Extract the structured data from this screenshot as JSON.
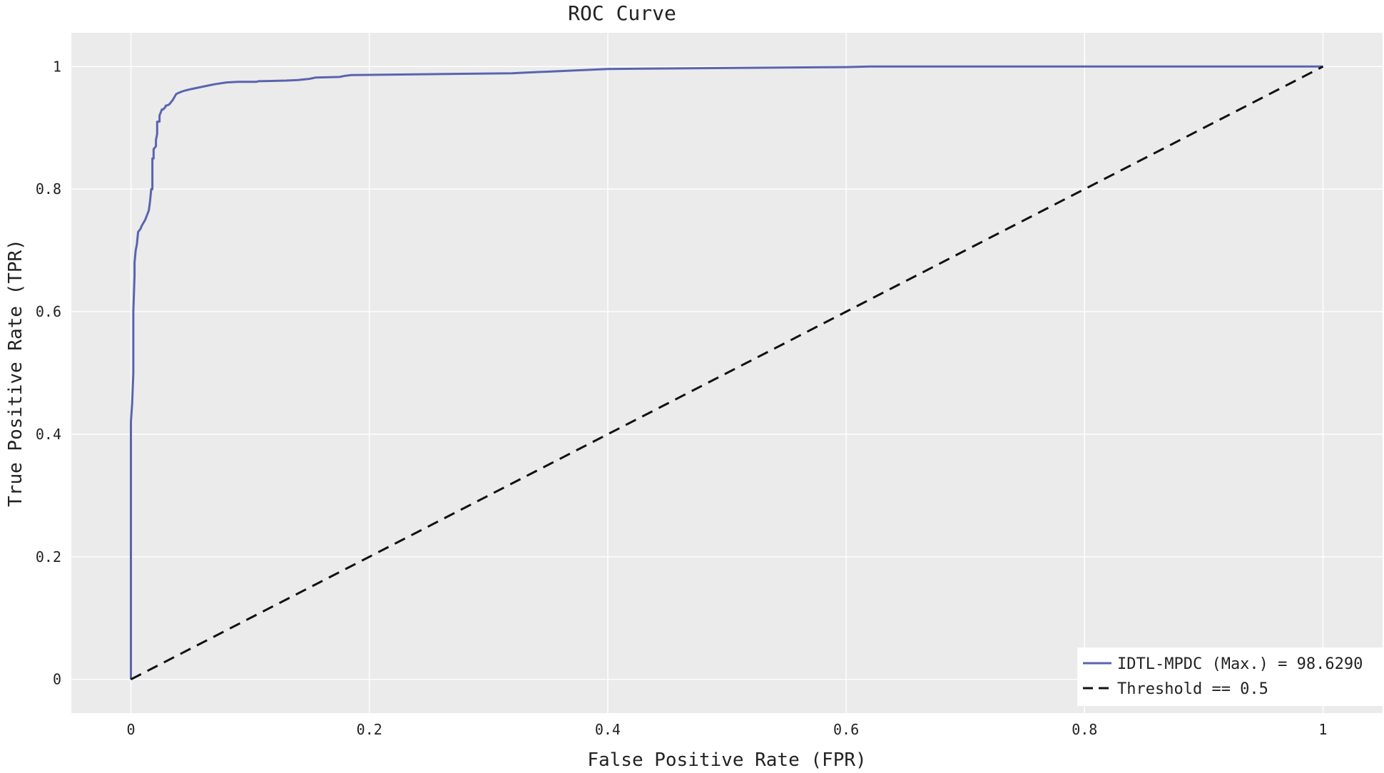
{
  "chart_data": {
    "type": "line",
    "title": "ROC Curve",
    "xlabel": "False Positive Rate (FPR)",
    "ylabel": "True Positive Rate (TPR)",
    "xlim": [
      -0.05,
      1.05
    ],
    "ylim": [
      -0.055,
      1.055
    ],
    "x_ticks": [
      0,
      0.2,
      0.4,
      0.6,
      0.8,
      1
    ],
    "x_tick_labels": [
      "0",
      "0.2",
      "0.4",
      "0.6",
      "0.8",
      "1"
    ],
    "y_ticks": [
      0,
      0.2,
      0.4,
      0.6,
      0.8,
      1
    ],
    "y_tick_labels": [
      "0",
      "0.2",
      "0.4",
      "0.6",
      "0.8",
      "1"
    ],
    "grid": true,
    "background_color": "#ebebeb",
    "legend_position": "bottom-right",
    "series": [
      {
        "name": "IDTL-MPDC (Max.) = 98.6290",
        "color": "#5b63b0",
        "style": "solid",
        "x": [
          0,
          0,
          0.001,
          0.002,
          0.002,
          0.003,
          0.003,
          0.004,
          0.005,
          0.006,
          0.008,
          0.009,
          0.012,
          0.014,
          0.015,
          0.016,
          0.017,
          0.018,
          0.018,
          0.019,
          0.019,
          0.021,
          0.021,
          0.022,
          0.022,
          0.024,
          0.024,
          0.026,
          0.027,
          0.029,
          0.029,
          0.031,
          0.032,
          0.035,
          0.037,
          0.038,
          0.04,
          0.044,
          0.05,
          0.055,
          0.065,
          0.07,
          0.08,
          0.09,
          0.105,
          0.107,
          0.13,
          0.14,
          0.15,
          0.155,
          0.175,
          0.18,
          0.185,
          0.32,
          0.33,
          0.4,
          0.6,
          0.62,
          1.0
        ],
        "y": [
          0,
          0.42,
          0.45,
          0.5,
          0.6,
          0.66,
          0.68,
          0.7,
          0.71,
          0.73,
          0.735,
          0.74,
          0.75,
          0.76,
          0.765,
          0.78,
          0.8,
          0.8,
          0.85,
          0.85,
          0.865,
          0.87,
          0.88,
          0.89,
          0.91,
          0.91,
          0.92,
          0.93,
          0.93,
          0.934,
          0.936,
          0.937,
          0.938,
          0.945,
          0.952,
          0.955,
          0.957,
          0.96,
          0.963,
          0.965,
          0.969,
          0.971,
          0.974,
          0.975,
          0.975,
          0.976,
          0.977,
          0.978,
          0.98,
          0.982,
          0.983,
          0.985,
          0.986,
          0.989,
          0.99,
          0.996,
          0.999,
          1.0,
          1.0
        ]
      },
      {
        "name": "Threshold == 0.5",
        "color": "#111111",
        "style": "dashed",
        "x": [
          0,
          1
        ],
        "y": [
          0,
          1
        ]
      }
    ]
  }
}
